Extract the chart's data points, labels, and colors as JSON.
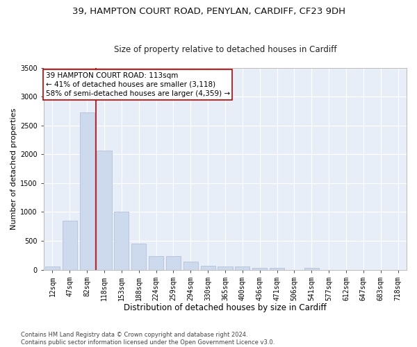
{
  "title_line1": "39, HAMPTON COURT ROAD, PENYLAN, CARDIFF, CF23 9DH",
  "title_line2": "Size of property relative to detached houses in Cardiff",
  "xlabel": "Distribution of detached houses by size in Cardiff",
  "ylabel": "Number of detached properties",
  "categories": [
    "12sqm",
    "47sqm",
    "82sqm",
    "118sqm",
    "153sqm",
    "188sqm",
    "224sqm",
    "259sqm",
    "294sqm",
    "330sqm",
    "365sqm",
    "400sqm",
    "436sqm",
    "471sqm",
    "506sqm",
    "541sqm",
    "577sqm",
    "612sqm",
    "647sqm",
    "683sqm",
    "718sqm"
  ],
  "values": [
    60,
    850,
    2730,
    2060,
    1000,
    450,
    230,
    230,
    135,
    70,
    55,
    55,
    35,
    25,
    0,
    25,
    0,
    0,
    0,
    0,
    0
  ],
  "bar_color": "#cdd9ec",
  "bar_edge_color": "#aabbd4",
  "bg_color": "#e8eef8",
  "grid_color": "#ffffff",
  "vline_x_index": 2.5,
  "vline_color": "#bb0000",
  "annotation_line1": "39 HAMPTON COURT ROAD: 113sqm",
  "annotation_line2": "← 41% of detached houses are smaller (3,118)",
  "annotation_line3": "58% of semi-detached houses are larger (4,359) →",
  "annotation_box_color": "#ffffff",
  "annotation_box_edge": "#bb0000",
  "ylim": [
    0,
    3500
  ],
  "yticks": [
    0,
    500,
    1000,
    1500,
    2000,
    2500,
    3000,
    3500
  ],
  "footer": "Contains HM Land Registry data © Crown copyright and database right 2024.\nContains public sector information licensed under the Open Government Licence v3.0.",
  "title_fontsize": 9.5,
  "subtitle_fontsize": 8.5,
  "tick_fontsize": 7,
  "xlabel_fontsize": 8.5,
  "ylabel_fontsize": 8.0,
  "annotation_fontsize": 7.5,
  "footer_fontsize": 6.0
}
